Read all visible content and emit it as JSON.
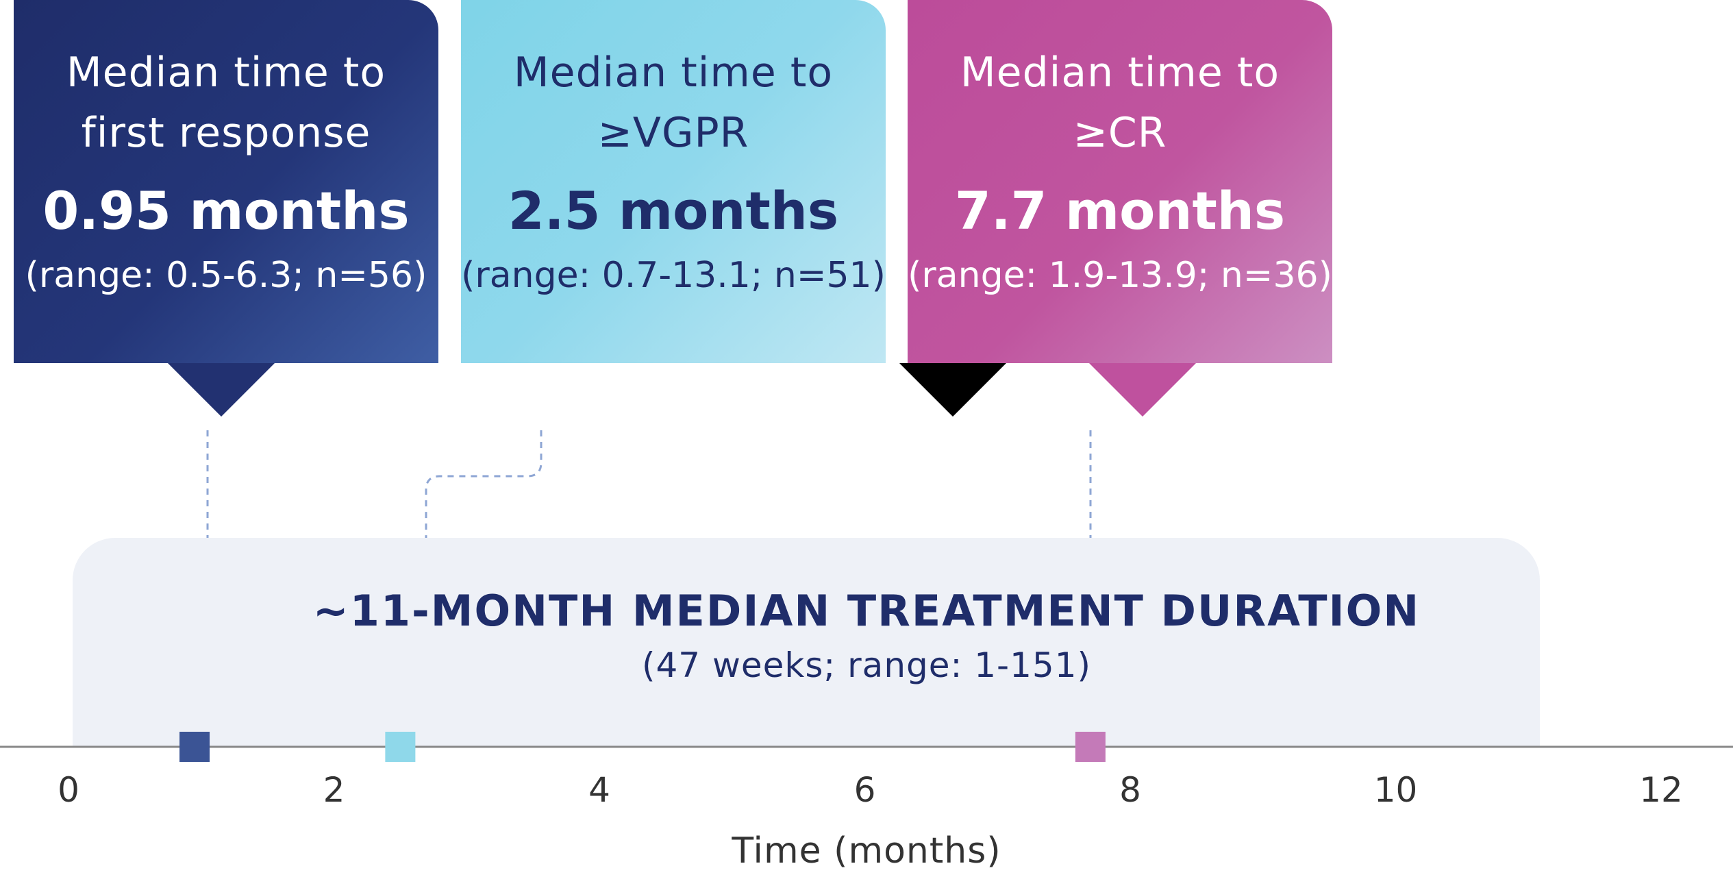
{
  "chart_data": {
    "type": "timeline",
    "xlabel": "Time (months)",
    "xlim": [
      0,
      12
    ],
    "xticks": [
      0,
      2,
      4,
      6,
      8,
      10,
      12
    ],
    "treatment_band": {
      "title": "~11-MONTH MEDIAN TREATMENT DURATION",
      "subtitle": "(47 weeks; range: 1-151)",
      "start": 0,
      "end": 11,
      "color": "#eef1f7"
    },
    "markers": [
      {
        "id": "first",
        "title": "Median time to\nfirst response",
        "value_label": "0.95 months",
        "range_label": "(range: 0.5-6.3; n=56)",
        "value": 0.95,
        "color": "#3b5495"
      },
      {
        "id": "vgpr",
        "title": "Median time to\n≥VGPR",
        "value_label": "2.5 months",
        "range_label": "(range: 0.7-13.1; n=51)",
        "value": 2.5,
        "color": "#8fd8ea"
      },
      {
        "id": "cr",
        "title": "Median time to\n≥CR",
        "value_label": "7.7 months",
        "range_label": "(range: 1.9-13.9; n=36)",
        "value": 7.7,
        "color": "#c47ab8"
      }
    ]
  }
}
